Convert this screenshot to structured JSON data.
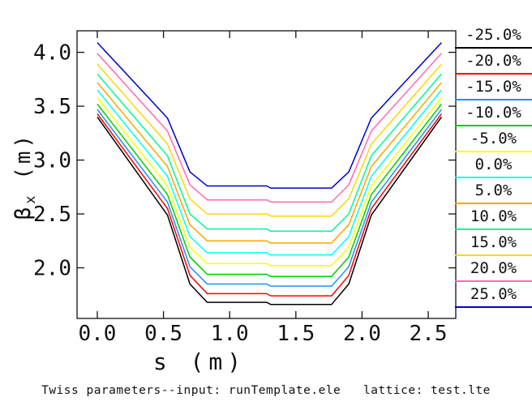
{
  "background": "#FFFFFF",
  "text_color": "#111111",
  "chart_data": {
    "type": "line",
    "title": "",
    "xlabel": "s (m)",
    "ylabel": {
      "symbol": "β",
      "sub": "x",
      "units": " (m)"
    },
    "caption": "Twiss parameters--input: runTemplate.ele   lattice: test.lte",
    "grid": false,
    "legend_position": "right",
    "xlim": [
      -0.153,
      2.708
    ],
    "ylim": [
      1.53,
      4.2
    ],
    "x_ticks": {
      "values": [
        0.0,
        0.5,
        1.0,
        1.5,
        2.0,
        2.5
      ],
      "labels": [
        "0.0",
        "0.5",
        "1.0",
        "1.5",
        "2.0",
        "2.5"
      ]
    },
    "y_ticks": {
      "values": [
        2.0,
        2.5,
        3.0,
        3.5,
        4.0
      ],
      "labels": [
        "2.0",
        "2.5",
        "3.0",
        "3.5",
        "4.0"
      ]
    },
    "series": [
      {
        "name": "-25.0%",
        "color": "#000000",
        "points": [
          [
            0,
            3.4
          ],
          [
            0.53,
            2.49
          ],
          [
            0.7,
            1.85
          ],
          [
            0.83,
            1.68
          ],
          [
            1.28,
            1.68
          ],
          [
            1.31,
            1.66
          ],
          [
            1.77,
            1.66
          ],
          [
            1.9,
            1.85
          ],
          [
            2.07,
            2.49
          ],
          [
            2.6,
            3.4
          ]
        ]
      },
      {
        "name": "-20.0%",
        "color": "#FF0000",
        "points": [
          [
            0,
            3.43
          ],
          [
            0.53,
            2.55
          ],
          [
            0.7,
            1.93
          ],
          [
            0.83,
            1.76
          ],
          [
            1.28,
            1.76
          ],
          [
            1.31,
            1.74
          ],
          [
            1.77,
            1.74
          ],
          [
            1.9,
            1.93
          ],
          [
            2.07,
            2.55
          ],
          [
            2.6,
            3.43
          ]
        ]
      },
      {
        "name": "-15.0%",
        "color": "#1E90FF",
        "points": [
          [
            0,
            3.47
          ],
          [
            0.53,
            2.61
          ],
          [
            0.7,
            2.01
          ],
          [
            0.83,
            1.85
          ],
          [
            1.28,
            1.85
          ],
          [
            1.31,
            1.83
          ],
          [
            1.77,
            1.83
          ],
          [
            1.9,
            2.01
          ],
          [
            2.07,
            2.61
          ],
          [
            2.6,
            3.47
          ]
        ]
      },
      {
        "name": "-10.0%",
        "color": "#00CD00",
        "points": [
          [
            0,
            3.52
          ],
          [
            0.53,
            2.68
          ],
          [
            0.7,
            2.1
          ],
          [
            0.83,
            1.94
          ],
          [
            1.28,
            1.94
          ],
          [
            1.31,
            1.92
          ],
          [
            1.77,
            1.92
          ],
          [
            1.9,
            2.1
          ],
          [
            2.07,
            2.68
          ],
          [
            2.6,
            3.52
          ]
        ]
      },
      {
        "name": "-5.0%",
        "color": "#FFFF00",
        "points": [
          [
            0,
            3.58
          ],
          [
            0.53,
            2.76
          ],
          [
            0.7,
            2.19
          ],
          [
            0.83,
            2.04
          ],
          [
            1.28,
            2.04
          ],
          [
            1.31,
            2.02
          ],
          [
            1.77,
            2.02
          ],
          [
            1.9,
            2.19
          ],
          [
            2.07,
            2.76
          ],
          [
            2.6,
            3.58
          ]
        ]
      },
      {
        "name": "0.0%",
        "color": "#00FFFF",
        "points": [
          [
            0,
            3.65
          ],
          [
            0.53,
            2.85
          ],
          [
            0.7,
            2.29
          ],
          [
            0.83,
            2.14
          ],
          [
            1.28,
            2.14
          ],
          [
            1.31,
            2.12
          ],
          [
            1.77,
            2.12
          ],
          [
            1.9,
            2.29
          ],
          [
            2.07,
            2.85
          ],
          [
            2.6,
            3.65
          ]
        ]
      },
      {
        "name": "5.0%",
        "color": "#FFA500",
        "points": [
          [
            0,
            3.72
          ],
          [
            0.53,
            2.94
          ],
          [
            0.7,
            2.4
          ],
          [
            0.83,
            2.25
          ],
          [
            1.28,
            2.25
          ],
          [
            1.31,
            2.23
          ],
          [
            1.77,
            2.23
          ],
          [
            1.9,
            2.4
          ],
          [
            2.07,
            2.94
          ],
          [
            2.6,
            3.72
          ]
        ]
      },
      {
        "name": "10.0%",
        "color": "#00FA9A",
        "points": [
          [
            0,
            3.8
          ],
          [
            0.53,
            3.04
          ],
          [
            0.7,
            2.5
          ],
          [
            0.83,
            2.36
          ],
          [
            1.28,
            2.36
          ],
          [
            1.31,
            2.34
          ],
          [
            1.77,
            2.34
          ],
          [
            1.9,
            2.5
          ],
          [
            2.07,
            3.04
          ],
          [
            2.6,
            3.8
          ]
        ]
      },
      {
        "name": "15.0%",
        "color": "#FFD700",
        "points": [
          [
            0,
            3.89
          ],
          [
            0.53,
            3.15
          ],
          [
            0.7,
            2.64
          ],
          [
            0.83,
            2.5
          ],
          [
            1.28,
            2.5
          ],
          [
            1.31,
            2.48
          ],
          [
            1.77,
            2.48
          ],
          [
            1.9,
            2.64
          ],
          [
            2.07,
            3.15
          ],
          [
            2.6,
            3.89
          ]
        ]
      },
      {
        "name": "20.0%",
        "color": "#FF69B4",
        "points": [
          [
            0,
            3.99
          ],
          [
            0.53,
            3.27
          ],
          [
            0.7,
            2.77
          ],
          [
            0.83,
            2.63
          ],
          [
            1.28,
            2.63
          ],
          [
            1.31,
            2.61
          ],
          [
            1.77,
            2.61
          ],
          [
            1.9,
            2.77
          ],
          [
            2.07,
            3.27
          ],
          [
            2.6,
            3.99
          ]
        ]
      },
      {
        "name": "25.0%",
        "color": "#0000CD",
        "points": [
          [
            0,
            4.09
          ],
          [
            0.53,
            3.39
          ],
          [
            0.7,
            2.89
          ],
          [
            0.83,
            2.76
          ],
          [
            1.28,
            2.76
          ],
          [
            1.31,
            2.74
          ],
          [
            1.77,
            2.74
          ],
          [
            1.9,
            2.89
          ],
          [
            2.07,
            3.39
          ],
          [
            2.6,
            4.09
          ]
        ]
      }
    ]
  }
}
